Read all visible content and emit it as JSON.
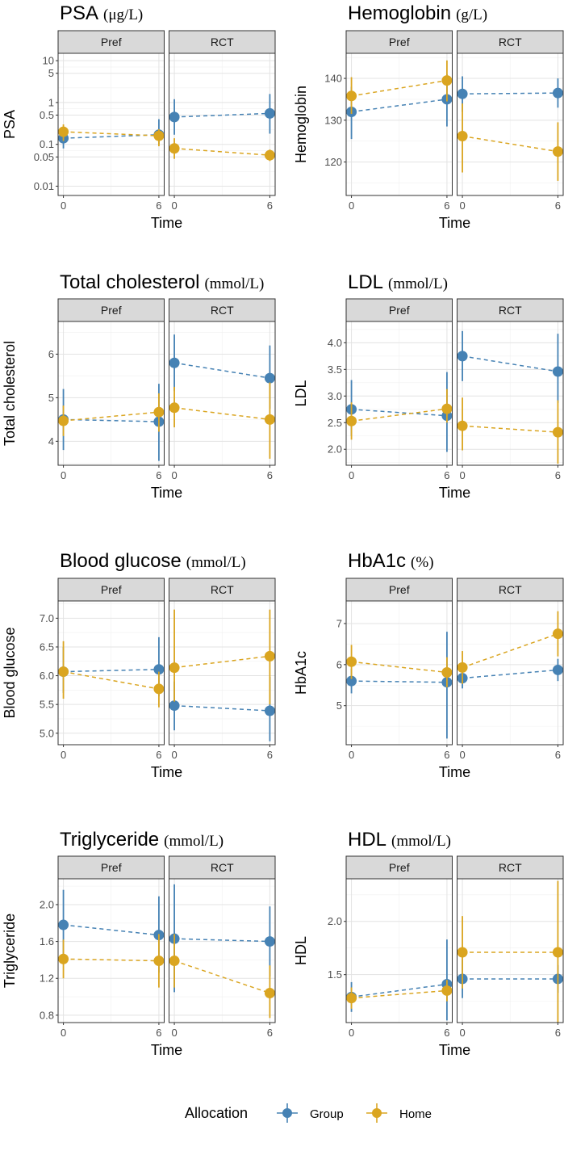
{
  "chart_data": [
    {
      "type": "line",
      "title": "PSA",
      "unit": "(μg/L)",
      "ylabel": "PSA",
      "xlabel": "Time",
      "scale": "log10",
      "ylim": [
        0.006,
        15
      ],
      "yticks": [
        0.01,
        0.05,
        0.1,
        0.5,
        1,
        5,
        10
      ],
      "ytick_labels": [
        "0.01",
        "0.05",
        "0.1",
        "0.5",
        "1",
        "5",
        "10"
      ],
      "x": [
        0,
        6
      ],
      "xticks": [
        "0",
        "6"
      ],
      "facets": [
        {
          "label": "Pref",
          "series": [
            {
              "name": "Group",
              "values": [
                0.14,
                0.17
              ],
              "lower": [
                0.08,
                0.1
              ],
              "upper": [
                0.19,
                0.4
              ]
            },
            {
              "name": "Home",
              "values": [
                0.2,
                0.16
              ],
              "lower": [
                0.12,
                0.09
              ],
              "upper": [
                0.3,
                0.23
              ]
            }
          ]
        },
        {
          "label": "RCT",
          "series": [
            {
              "name": "Group",
              "values": [
                0.45,
                0.55
              ],
              "lower": [
                0.17,
                0.18
              ],
              "upper": [
                1.2,
                1.6
              ]
            },
            {
              "name": "Home",
              "values": [
                0.08,
                0.055
              ],
              "lower": [
                0.045,
                0.04
              ],
              "upper": [
                0.14,
                0.075
              ]
            }
          ]
        }
      ]
    },
    {
      "type": "line",
      "title": "Hemoglobin",
      "unit": "(g/L)",
      "ylabel": "Hemoglobin",
      "xlabel": "Time",
      "scale": "linear",
      "ylim": [
        112,
        146
      ],
      "yticks": [
        120,
        130,
        140
      ],
      "ytick_labels": [
        "120",
        "130",
        "140"
      ],
      "x": [
        0,
        6
      ],
      "xticks": [
        "0",
        "6"
      ],
      "facets": [
        {
          "label": "Pref",
          "series": [
            {
              "name": "Group",
              "values": [
                132,
                135
              ],
              "lower": [
                125.5,
                128.5
              ],
              "upper": [
                138,
                141
              ]
            },
            {
              "name": "Home",
              "values": [
                135.8,
                139.5
              ],
              "lower": [
                131.5,
                134.5
              ],
              "upper": [
                140.3,
                144.3
              ]
            }
          ]
        },
        {
          "label": "RCT",
          "series": [
            {
              "name": "Group",
              "values": [
                136.3,
                136.5
              ],
              "lower": [
                132,
                133
              ],
              "upper": [
                140.5,
                140
              ]
            },
            {
              "name": "Home",
              "values": [
                126.2,
                122.5
              ],
              "lower": [
                117.5,
                115.5
              ],
              "upper": [
                134,
                129.5
              ]
            }
          ]
        }
      ]
    },
    {
      "type": "line",
      "title": "Total cholesterol",
      "unit": "(mmol/L)",
      "ylabel": "Total cholesterol",
      "xlabel": "Time",
      "scale": "linear",
      "ylim": [
        3.45,
        6.75
      ],
      "yticks": [
        4,
        5,
        6
      ],
      "ytick_labels": [
        "4",
        "5",
        "6"
      ],
      "x": [
        0,
        6
      ],
      "xticks": [
        "0",
        "6"
      ],
      "facets": [
        {
          "label": "Pref",
          "series": [
            {
              "name": "Group",
              "values": [
                4.5,
                4.45
              ],
              "lower": [
                3.8,
                3.55
              ],
              "upper": [
                5.2,
                5.32
              ]
            },
            {
              "name": "Home",
              "values": [
                4.47,
                4.67
              ],
              "lower": [
                4.12,
                4.22
              ],
              "upper": [
                4.82,
                5.1
              ]
            }
          ]
        },
        {
          "label": "RCT",
          "series": [
            {
              "name": "Group",
              "values": [
                5.8,
                5.45
              ],
              "lower": [
                5.15,
                4.75
              ],
              "upper": [
                6.45,
                6.2
              ]
            },
            {
              "name": "Home",
              "values": [
                4.77,
                4.5
              ],
              "lower": [
                4.32,
                3.6
              ],
              "upper": [
                5.25,
                5.35
              ]
            }
          ]
        }
      ]
    },
    {
      "type": "line",
      "title": "LDL",
      "unit": "(mmol/L)",
      "ylabel": "LDL",
      "xlabel": "Time",
      "scale": "linear",
      "ylim": [
        1.7,
        4.4
      ],
      "yticks": [
        2.0,
        2.5,
        3.0,
        3.5,
        4.0
      ],
      "ytick_labels": [
        "2.0",
        "2.5",
        "3.0",
        "3.5",
        "4.0"
      ],
      "x": [
        0,
        6
      ],
      "xticks": [
        "0",
        "6"
      ],
      "facets": [
        {
          "label": "Pref",
          "series": [
            {
              "name": "Group",
              "values": [
                2.75,
                2.63
              ],
              "lower": [
                2.25,
                1.95
              ],
              "upper": [
                3.3,
                3.45
              ]
            },
            {
              "name": "Home",
              "values": [
                2.53,
                2.76
              ],
              "lower": [
                2.18,
                2.5
              ],
              "upper": [
                2.88,
                3.13
              ]
            }
          ]
        },
        {
          "label": "RCT",
          "series": [
            {
              "name": "Group",
              "values": [
                3.75,
                3.46
              ],
              "lower": [
                3.28,
                2.87
              ],
              "upper": [
                4.22,
                4.17
              ]
            },
            {
              "name": "Home",
              "values": [
                2.44,
                2.32
              ],
              "lower": [
                1.98,
                1.73
              ],
              "upper": [
                2.97,
                2.92
              ]
            }
          ]
        }
      ]
    },
    {
      "type": "line",
      "title": "Blood glucose",
      "unit": "(mmol/L)",
      "ylabel": "Blood glucose",
      "xlabel": "Time",
      "scale": "linear",
      "ylim": [
        4.8,
        7.3
      ],
      "yticks": [
        5.0,
        5.5,
        6.0,
        6.5,
        7.0
      ],
      "ytick_labels": [
        "5.0",
        "5.5",
        "6.0",
        "6.5",
        "7.0"
      ],
      "x": [
        0,
        6
      ],
      "xticks": [
        "0",
        "6"
      ],
      "facets": [
        {
          "label": "Pref",
          "series": [
            {
              "name": "Group",
              "values": [
                6.07,
                6.11
              ],
              "lower": [
                5.7,
                5.64
              ],
              "upper": [
                6.5,
                6.67
              ]
            },
            {
              "name": "Home",
              "values": [
                6.07,
                5.77
              ],
              "lower": [
                5.6,
                5.45
              ],
              "upper": [
                6.6,
                6.07
              ]
            }
          ]
        },
        {
          "label": "RCT",
          "series": [
            {
              "name": "Group",
              "values": [
                5.48,
                5.39
              ],
              "lower": [
                5.05,
                4.86
              ],
              "upper": [
                5.9,
                5.98
              ]
            },
            {
              "name": "Home",
              "values": [
                6.14,
                6.34
              ],
              "lower": [
                5.55,
                5.5
              ],
              "upper": [
                7.15,
                7.15
              ]
            }
          ]
        }
      ]
    },
    {
      "type": "line",
      "title": "HbA1c",
      "unit": "(%)",
      "ylabel": "HbA1c",
      "xlabel": "Time",
      "scale": "linear",
      "ylim": [
        4.05,
        7.55
      ],
      "yticks": [
        5,
        6,
        7
      ],
      "ytick_labels": [
        "5",
        "6",
        "7"
      ],
      "x": [
        0,
        6
      ],
      "xticks": [
        "0",
        "6"
      ],
      "facets": [
        {
          "label": "Pref",
          "series": [
            {
              "name": "Group",
              "values": [
                5.6,
                5.57
              ],
              "lower": [
                5.3,
                4.2
              ],
              "upper": [
                5.9,
                6.8
              ]
            },
            {
              "name": "Home",
              "values": [
                6.07,
                5.81
              ],
              "lower": [
                5.65,
                5.45
              ],
              "upper": [
                6.48,
                6.18
              ]
            }
          ]
        },
        {
          "label": "RCT",
          "series": [
            {
              "name": "Group",
              "values": [
                5.67,
                5.87
              ],
              "lower": [
                5.42,
                5.6
              ],
              "upper": [
                5.92,
                6.14
              ]
            },
            {
              "name": "Home",
              "values": [
                5.93,
                6.75
              ],
              "lower": [
                5.53,
                6.2
              ],
              "upper": [
                6.33,
                7.3
              ]
            }
          ]
        }
      ]
    },
    {
      "type": "line",
      "title": "Triglyceride",
      "unit": "(mmol/L)",
      "ylabel": "Triglyceride",
      "xlabel": "Time",
      "scale": "linear",
      "ylim": [
        0.72,
        2.28
      ],
      "yticks": [
        0.8,
        1.2,
        1.6,
        2.0
      ],
      "ytick_labels": [
        "0.8",
        "1.2",
        "1.6",
        "2.0"
      ],
      "x": [
        0,
        6
      ],
      "xticks": [
        "0",
        "6"
      ],
      "facets": [
        {
          "label": "Pref",
          "series": [
            {
              "name": "Group",
              "values": [
                1.78,
                1.67
              ],
              "lower": [
                1.4,
                1.26
              ],
              "upper": [
                2.16,
                2.09
              ]
            },
            {
              "name": "Home",
              "values": [
                1.41,
                1.39
              ],
              "lower": [
                1.2,
                1.1
              ],
              "upper": [
                1.62,
                1.68
              ]
            }
          ]
        },
        {
          "label": "RCT",
          "series": [
            {
              "name": "Group",
              "values": [
                1.63,
                1.6
              ],
              "lower": [
                1.05,
                1.22
              ],
              "upper": [
                2.22,
                1.98
              ]
            },
            {
              "name": "Home",
              "values": [
                1.39,
                1.04
              ],
              "lower": [
                1.1,
                0.77
              ],
              "upper": [
                1.68,
                1.34
              ]
            }
          ]
        }
      ]
    },
    {
      "type": "line",
      "title": "HDL",
      "unit": "(mmol/L)",
      "ylabel": "HDL",
      "xlabel": "Time",
      "scale": "linear",
      "ylim": [
        1.05,
        2.4
      ],
      "yticks": [
        1.5,
        2.0
      ],
      "ytick_labels": [
        "1.5",
        "2.0"
      ],
      "x": [
        0,
        6
      ],
      "xticks": [
        "0",
        "6"
      ],
      "facets": [
        {
          "label": "Pref",
          "series": [
            {
              "name": "Group",
              "values": [
                1.29,
                1.41
              ],
              "lower": [
                1.15,
                1.07
              ],
              "upper": [
                1.43,
                1.83
              ]
            },
            {
              "name": "Home",
              "values": [
                1.28,
                1.35
              ],
              "lower": [
                1.18,
                1.25
              ],
              "upper": [
                1.38,
                1.45
              ]
            }
          ]
        },
        {
          "label": "RCT",
          "series": [
            {
              "name": "Group",
              "values": [
                1.46,
                1.46
              ],
              "lower": [
                1.28,
                1.33
              ],
              "upper": [
                1.64,
                1.59
              ]
            },
            {
              "name": "Home",
              "values": [
                1.71,
                1.71
              ],
              "lower": [
                1.37,
                1.05
              ],
              "upper": [
                2.05,
                2.38
              ]
            }
          ]
        }
      ]
    }
  ],
  "legend": {
    "title": "Allocation",
    "items": [
      {
        "name": "Group",
        "color": "#4682B4"
      },
      {
        "name": "Home",
        "color": "#DAA520"
      }
    ]
  }
}
